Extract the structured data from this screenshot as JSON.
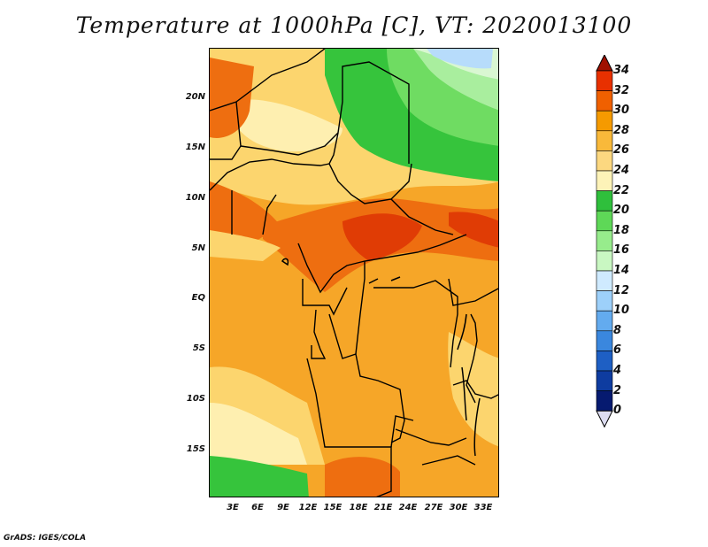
{
  "title": "Temperature at 1000hPa [C], VT: 2020013100",
  "credit": "GrADS: IGES/COLA",
  "map": {
    "lat_ticks": [
      "20N",
      "15N",
      "10N",
      "5N",
      "EQ",
      "5S",
      "10S",
      "15S"
    ],
    "lon_ticks": [
      "3E",
      "6E",
      "9E",
      "12E",
      "15E",
      "18E",
      "21E",
      "24E",
      "27E",
      "30E",
      "33E"
    ]
  },
  "colorbar": {
    "labels": [
      "34",
      "32",
      "30",
      "28",
      "26",
      "24",
      "22",
      "20",
      "18",
      "16",
      "14",
      "12",
      "10",
      "8",
      "6",
      "4",
      "2",
      "0"
    ],
    "colors": [
      "#a01000",
      "#e83000",
      "#f06000",
      "#f59a00",
      "#f9b93a",
      "#fcd880",
      "#fdf3b8",
      "#2fbf3c",
      "#5ed857",
      "#97ec8c",
      "#c9f7c2",
      "#cfeaff",
      "#9dd0fa",
      "#63abef",
      "#3a87de",
      "#1e5fc4",
      "#0e3ca0",
      "#061a70",
      "#0a0a60"
    ]
  },
  "legend": {
    "warm": "#f6a628",
    "hot": "#ee6e10",
    "hottest": "#e03c05",
    "mild": "#fcd56e",
    "cool": "#feefb0",
    "green_dark": "#36c43c",
    "green_mid": "#6fdc62",
    "green_light": "#a9ee9e",
    "pale": "#d9f7d2",
    "blue_light": "#b7dcfb"
  }
}
